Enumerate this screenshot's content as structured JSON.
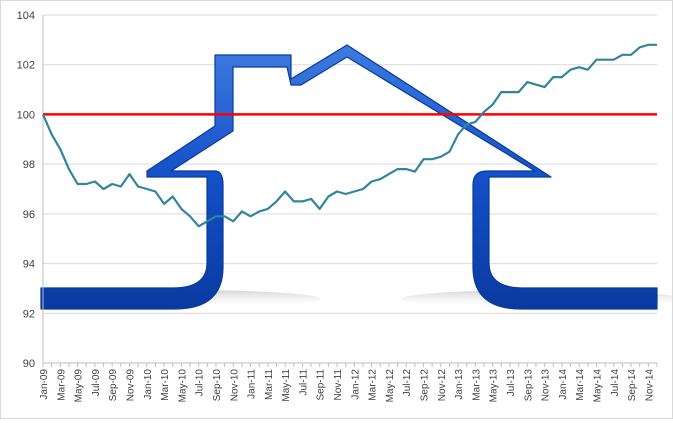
{
  "chart_data": {
    "type": "line",
    "title": "",
    "xlabel": "",
    "ylabel": "",
    "ylim": [
      90,
      104
    ],
    "yticks": [
      90,
      92,
      94,
      96,
      98,
      100,
      102,
      104
    ],
    "grid": true,
    "legend": "none",
    "x_tick_labels": [
      "Jan-09",
      "Mar-09",
      "May-09",
      "Jul-09",
      "Sep-09",
      "Nov-09",
      "Jan-10",
      "Mar-10",
      "May-10",
      "Jul-10",
      "Sep-10",
      "Nov-10",
      "Jan-11",
      "Mar-11",
      "May-11",
      "Jul-11",
      "Sep-11",
      "Nov-11",
      "Jan-12",
      "Mar-12",
      "May-12",
      "Jul-12",
      "Sep-12",
      "Nov-12",
      "Jan-13",
      "Mar-13",
      "May-13",
      "Jul-13",
      "Sep-13",
      "Nov-13",
      "Jan-14",
      "Mar-14",
      "May-14",
      "Jul-14",
      "Sep-14",
      "Nov-14"
    ],
    "x": [
      "Jan-09",
      "Feb-09",
      "Mar-09",
      "Apr-09",
      "May-09",
      "Jun-09",
      "Jul-09",
      "Aug-09",
      "Sep-09",
      "Oct-09",
      "Nov-09",
      "Dec-09",
      "Jan-10",
      "Feb-10",
      "Mar-10",
      "Apr-10",
      "May-10",
      "Jun-10",
      "Jul-10",
      "Aug-10",
      "Sep-10",
      "Oct-10",
      "Nov-10",
      "Dec-10",
      "Jan-11",
      "Feb-11",
      "Mar-11",
      "Apr-11",
      "May-11",
      "Jun-11",
      "Jul-11",
      "Aug-11",
      "Sep-11",
      "Oct-11",
      "Nov-11",
      "Dec-11",
      "Jan-12",
      "Feb-12",
      "Mar-12",
      "Apr-12",
      "May-12",
      "Jun-12",
      "Jul-12",
      "Aug-12",
      "Sep-12",
      "Oct-12",
      "Nov-12",
      "Dec-12",
      "Jan-13",
      "Feb-13",
      "Mar-13",
      "Apr-13",
      "May-13",
      "Jun-13",
      "Jul-13",
      "Aug-13",
      "Sep-13",
      "Oct-13",
      "Nov-13",
      "Dec-13",
      "Jan-14",
      "Feb-14",
      "Mar-14",
      "Apr-14",
      "May-14",
      "Jun-14",
      "Jul-14",
      "Aug-14",
      "Sep-14",
      "Oct-14",
      "Nov-14",
      "Dec-14"
    ],
    "series": [
      {
        "name": "",
        "color": "#31859c",
        "values": [
          100.0,
          99.2,
          98.6,
          97.8,
          97.2,
          97.2,
          97.3,
          97.0,
          97.2,
          97.1,
          97.6,
          97.1,
          97.0,
          96.9,
          96.4,
          96.7,
          96.2,
          95.9,
          95.5,
          95.7,
          95.9,
          95.9,
          95.7,
          96.1,
          95.9,
          96.1,
          96.2,
          96.5,
          96.9,
          96.5,
          96.5,
          96.6,
          96.2,
          96.7,
          96.9,
          96.8,
          96.9,
          97.0,
          97.3,
          97.4,
          97.6,
          97.8,
          97.8,
          97.7,
          98.2,
          98.2,
          98.3,
          98.5,
          99.2,
          99.6,
          99.7,
          100.1,
          100.4,
          100.9,
          100.9,
          100.9,
          101.3,
          101.2,
          101.1,
          101.5,
          101.5,
          101.8,
          101.9,
          101.8,
          102.2,
          102.2,
          102.2,
          102.4,
          102.4,
          102.7,
          102.8,
          102.8
        ]
      },
      {
        "name": "",
        "color": "#ff0000",
        "values": [
          100,
          100,
          100,
          100,
          100,
          100,
          100,
          100,
          100,
          100,
          100,
          100,
          100,
          100,
          100,
          100,
          100,
          100,
          100,
          100,
          100,
          100,
          100,
          100,
          100,
          100,
          100,
          100,
          100,
          100,
          100,
          100,
          100,
          100,
          100,
          100,
          100,
          100,
          100,
          100,
          100,
          100,
          100,
          100,
          100,
          100,
          100,
          100,
          100,
          100,
          100,
          100,
          100,
          100,
          100,
          100,
          100,
          100,
          100,
          100,
          100,
          100,
          100,
          100,
          100,
          100,
          100,
          100,
          100,
          100,
          100,
          100
        ]
      }
    ]
  }
}
